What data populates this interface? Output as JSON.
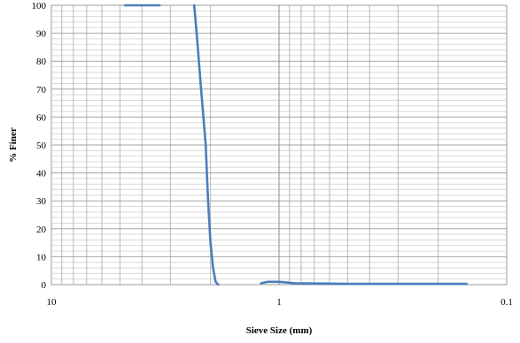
{
  "chart_data": {
    "type": "line",
    "title": "",
    "xlabel": "Sieve Size (mm)",
    "ylabel": "% Finer",
    "x_scale": "log",
    "x_reversed": true,
    "xlim": [
      10,
      0.1
    ],
    "ylim": [
      0,
      100
    ],
    "x_ticks": [
      10,
      1,
      0.1
    ],
    "x_tick_labels": [
      "10",
      "1",
      "0.1"
    ],
    "y_ticks": [
      0,
      10,
      20,
      30,
      40,
      50,
      60,
      70,
      80,
      90,
      100
    ],
    "y_tick_labels": [
      "0",
      "10",
      "20",
      "30",
      "40",
      "50",
      "60",
      "70",
      "80",
      "90",
      "100"
    ],
    "grid": true,
    "legend": "none",
    "series_color": "#4a7ebb",
    "series": [
      {
        "segments": [
          {
            "x": [
              4.75,
              3.35
            ],
            "y": [
              100,
              100
            ]
          },
          {
            "x": [
              2.36,
              2.3,
              2.2,
              2.1,
              2.05,
              2.0,
              1.95,
              1.9,
              1.85
            ],
            "y": [
              100,
              90,
              70,
              50,
              30,
              15,
              6,
              1,
              0
            ]
          },
          {
            "x": [
              1.2,
              1.12,
              1.0,
              0.85,
              0.5,
              0.3,
              0.15
            ],
            "y": [
              0.5,
              1.0,
              1.0,
              0.5,
              0.3,
              0.3,
              0.3
            ]
          }
        ]
      }
    ]
  }
}
